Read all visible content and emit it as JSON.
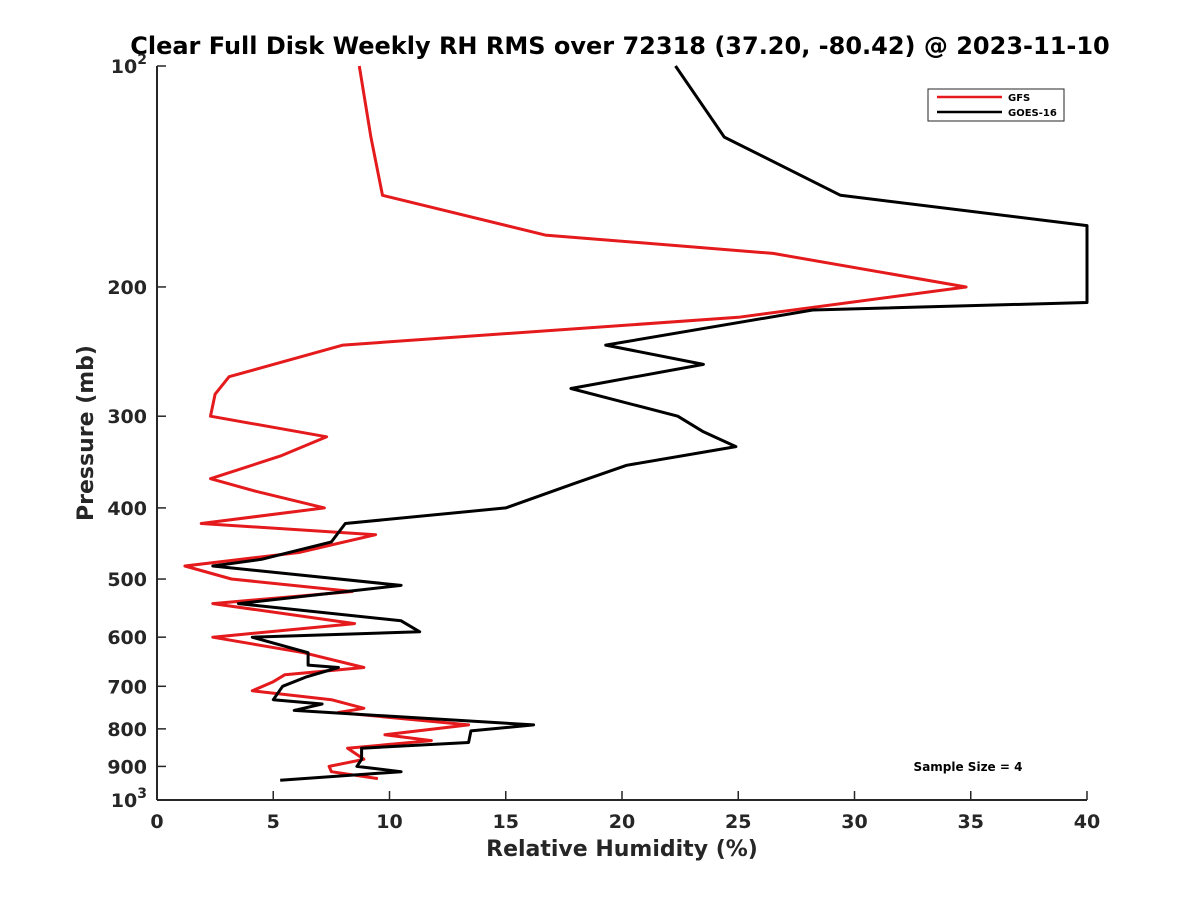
{
  "chart_data": {
    "type": "line",
    "title": "Clear Full Disk Weekly RH RMS over 72318 (37.20, -80.42) @ 2023-11-10",
    "xlabel": "Relative Humidity (%)",
    "ylabel": "Pressure (mb)",
    "xlim": [
      0,
      40
    ],
    "ylim": [
      100,
      1000
    ],
    "y_scale": "log",
    "y_reversed": true,
    "grid": false,
    "legend_position": "top-right",
    "x_ticks": [
      "0",
      "5",
      "10",
      "15",
      "20",
      "25",
      "30",
      "35",
      "40"
    ],
    "y_ticks": [
      {
        "value": 100,
        "base": "10",
        "exp": "2"
      },
      {
        "value": 200,
        "label": "200"
      },
      {
        "value": 300,
        "label": "300"
      },
      {
        "value": 400,
        "label": "400"
      },
      {
        "value": 500,
        "label": "500"
      },
      {
        "value": 600,
        "label": "600"
      },
      {
        "value": 700,
        "label": "700"
      },
      {
        "value": 800,
        "label": "800"
      },
      {
        "value": 900,
        "label": "900"
      },
      {
        "value": 1000,
        "base": "10",
        "exp": "3"
      }
    ],
    "annotation": "Sample Size = 4",
    "series": [
      {
        "name": "GFS",
        "color": "#e41a1c",
        "points": [
          [
            8.7,
            100
          ],
          [
            9.2,
            125
          ],
          [
            9.7,
            150
          ],
          [
            16.7,
            170
          ],
          [
            26.5,
            180
          ],
          [
            34.8,
            200
          ],
          [
            25,
            220
          ],
          [
            8,
            240
          ],
          [
            3.1,
            265
          ],
          [
            2.5,
            280
          ],
          [
            2.3,
            300
          ],
          [
            7.3,
            320
          ],
          [
            5.3,
            340
          ],
          [
            2.3,
            365
          ],
          [
            4.3,
            380
          ],
          [
            7.2,
            400
          ],
          [
            1.9,
            420
          ],
          [
            9.4,
            435
          ],
          [
            6.1,
            460
          ],
          [
            1.2,
            480
          ],
          [
            3.2,
            500
          ],
          [
            8.4,
            520
          ],
          [
            2.4,
            540
          ],
          [
            8.5,
            575
          ],
          [
            2.4,
            600
          ],
          [
            6.3,
            630
          ],
          [
            8.9,
            660
          ],
          [
            5.5,
            675
          ],
          [
            5.0,
            690
          ],
          [
            4.1,
            710
          ],
          [
            7.5,
            730
          ],
          [
            8.9,
            750
          ],
          [
            7.8,
            760
          ],
          [
            13.4,
            790
          ],
          [
            9.8,
            815
          ],
          [
            11.8,
            830
          ],
          [
            8.2,
            850
          ],
          [
            8.9,
            880
          ],
          [
            7.4,
            900
          ],
          [
            7.5,
            915
          ],
          [
            9.5,
            935
          ]
        ]
      },
      {
        "name": "GOES-16",
        "color": "#000000",
        "points": [
          [
            22.3,
            100
          ],
          [
            24.4,
            125
          ],
          [
            29.4,
            150
          ],
          [
            40,
            165
          ],
          [
            40,
            210
          ],
          [
            28.2,
            215
          ],
          [
            19.3,
            240
          ],
          [
            23.5,
            255
          ],
          [
            17.8,
            275
          ],
          [
            22.4,
            300
          ],
          [
            23.5,
            315
          ],
          [
            24.9,
            330
          ],
          [
            20.2,
            350
          ],
          [
            18.0,
            370
          ],
          [
            15.0,
            400
          ],
          [
            8.1,
            420
          ],
          [
            7.5,
            445
          ],
          [
            4.5,
            470
          ],
          [
            2.4,
            480
          ],
          [
            10.5,
            510
          ],
          [
            3.5,
            540
          ],
          [
            10.5,
            570
          ],
          [
            11.3,
            590
          ],
          [
            4.1,
            600
          ],
          [
            6.5,
            630
          ],
          [
            6.5,
            655
          ],
          [
            7.8,
            660
          ],
          [
            6.4,
            680
          ],
          [
            5.4,
            700
          ],
          [
            5.0,
            730
          ],
          [
            7.1,
            740
          ],
          [
            5.9,
            755
          ],
          [
            16.2,
            790
          ],
          [
            13.5,
            805
          ],
          [
            13.4,
            835
          ],
          [
            8.8,
            850
          ],
          [
            8.8,
            880
          ],
          [
            8.6,
            900
          ],
          [
            10.5,
            915
          ],
          [
            5.3,
            940
          ]
        ]
      }
    ]
  }
}
